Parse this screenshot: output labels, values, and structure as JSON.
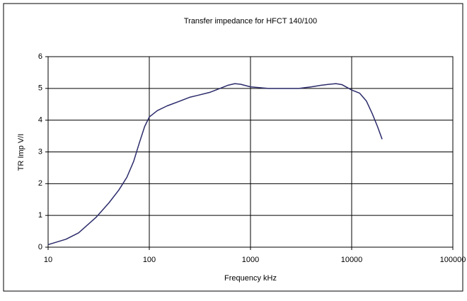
{
  "chart_data": {
    "type": "line",
    "title": "Transfer impedance for HFCT 140/100",
    "x_label": "Frequency kHz",
    "y_label": "TR Imp V/I",
    "x": [
      10,
      15,
      20,
      30,
      40,
      50,
      60,
      70,
      80,
      90,
      100,
      120,
      150,
      200,
      250,
      300,
      400,
      500,
      600,
      700,
      800,
      1000,
      1500,
      2000,
      3000,
      4000,
      5000,
      6000,
      7000,
      8000,
      10000,
      12000,
      14000,
      16000,
      18000,
      20000
    ],
    "series": [
      {
        "color": "#2b2b6b",
        "values": [
          0.08,
          0.25,
          0.45,
          0.95,
          1.4,
          1.8,
          2.2,
          2.7,
          3.3,
          3.8,
          4.1,
          4.3,
          4.45,
          4.6,
          4.72,
          4.78,
          4.88,
          5.0,
          5.1,
          5.15,
          5.13,
          5.05,
          5.0,
          5.0,
          5.0,
          5.05,
          5.1,
          5.13,
          5.15,
          5.12,
          4.95,
          4.85,
          4.6,
          4.2,
          3.8,
          3.4
        ]
      }
    ],
    "xscale": "log",
    "xlim": [
      10,
      100000
    ],
    "xticks": [
      10,
      100,
      1000,
      10000,
      100000
    ],
    "ylim": [
      0,
      6
    ],
    "yticks": [
      0,
      1,
      2,
      3,
      4,
      5,
      6
    ],
    "grid": true
  }
}
